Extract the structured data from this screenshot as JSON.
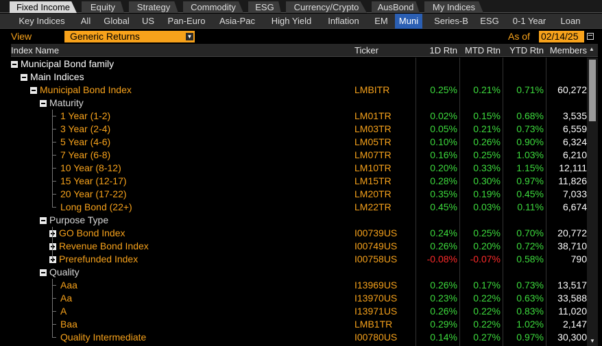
{
  "tabs_top": [
    "Fixed Income",
    "Equity",
    "Strategy",
    "Commodity",
    "ESG",
    "Currency/Crypto",
    "AusBond",
    "My Indices"
  ],
  "tabs_top_active": 0,
  "tabs_sub": [
    "Key Indices",
    "All",
    "Global",
    "US",
    "Pan-Euro",
    "Asia-Pac",
    "High Yield",
    "Inflation",
    "EM",
    "Muni",
    "Series-B",
    "ESG",
    "0-1 Year",
    "Loan"
  ],
  "tabs_sub_active": 9,
  "view": {
    "label": "View",
    "value": "Generic Returns",
    "asof_label": "As of",
    "asof_value": "02/14/25"
  },
  "columns": {
    "name": "Index Name",
    "ticker": "Ticker",
    "r1d": "1D Rtn",
    "mtd": "MTD Rtn",
    "ytd": "YTD Rtn",
    "members": "Members"
  },
  "colors": {
    "accent": "#f7a21b",
    "positive": "#3ddc3d",
    "negative": "#ff2a2a",
    "active_tab": "#2b5fb3"
  },
  "rows": [
    {
      "name": "Municipal Bond family",
      "level": 0,
      "toggle": "minus",
      "style": "white"
    },
    {
      "name": "Main Indices",
      "level": 1,
      "toggle": "minus",
      "style": "white"
    },
    {
      "name": "Municipal Bond Index",
      "level": 2,
      "toggle": "minus",
      "style": "orange",
      "ticker": "LMBITR",
      "r1d": "0.25%",
      "mtd": "0.21%",
      "ytd": "0.71%",
      "members": "60,272"
    },
    {
      "name": "Maturity",
      "level": 3,
      "toggle": "minus",
      "style": "grey"
    },
    {
      "name": "1 Year (1-2)",
      "level": 4,
      "style": "orange",
      "ticker": "LM01TR",
      "r1d": "0.02%",
      "mtd": "0.15%",
      "ytd": "0.68%",
      "members": "3,535"
    },
    {
      "name": "3 Year (2-4)",
      "level": 4,
      "style": "orange",
      "ticker": "LM03TR",
      "r1d": "0.05%",
      "mtd": "0.21%",
      "ytd": "0.73%",
      "members": "6,559"
    },
    {
      "name": "5 Year (4-6)",
      "level": 4,
      "style": "orange",
      "ticker": "LM05TR",
      "r1d": "0.10%",
      "mtd": "0.26%",
      "ytd": "0.90%",
      "members": "6,324"
    },
    {
      "name": "7 Year (6-8)",
      "level": 4,
      "style": "orange",
      "ticker": "LM07TR",
      "r1d": "0.16%",
      "mtd": "0.25%",
      "ytd": "1.03%",
      "members": "6,210"
    },
    {
      "name": "10 Year (8-12)",
      "level": 4,
      "style": "orange",
      "ticker": "LM10TR",
      "r1d": "0.20%",
      "mtd": "0.33%",
      "ytd": "1.15%",
      "members": "12,111"
    },
    {
      "name": "15 Year (12-17)",
      "level": 4,
      "style": "orange",
      "ticker": "LM15TR",
      "r1d": "0.28%",
      "mtd": "0.30%",
      "ytd": "0.97%",
      "members": "11,826"
    },
    {
      "name": "20 Year (17-22)",
      "level": 4,
      "style": "orange",
      "ticker": "LM20TR",
      "r1d": "0.35%",
      "mtd": "0.19%",
      "ytd": "0.45%",
      "members": "7,033"
    },
    {
      "name": "Long Bond (22+)",
      "level": 4,
      "style": "orange",
      "ticker": "LM22TR",
      "r1d": "0.45%",
      "mtd": "0.03%",
      "ytd": "0.11%",
      "members": "6,674"
    },
    {
      "name": "Purpose Type",
      "level": 3,
      "toggle": "minus",
      "style": "grey"
    },
    {
      "name": "GO Bond Index",
      "level": 4,
      "toggle": "plus",
      "style": "orange",
      "ticker": "I00739US",
      "r1d": "0.24%",
      "mtd": "0.25%",
      "ytd": "0.70%",
      "members": "20,772"
    },
    {
      "name": "Revenue Bond Index",
      "level": 4,
      "toggle": "plus",
      "style": "orange",
      "ticker": "I00749US",
      "r1d": "0.26%",
      "mtd": "0.20%",
      "ytd": "0.72%",
      "members": "38,710"
    },
    {
      "name": "Prerefunded Index",
      "level": 4,
      "toggle": "plus",
      "style": "orange",
      "ticker": "I00758US",
      "r1d": "-0.08%",
      "mtd": "-0.07%",
      "ytd": "0.58%",
      "members": "790"
    },
    {
      "name": "Quality",
      "level": 3,
      "toggle": "minus",
      "style": "grey"
    },
    {
      "name": "Aaa",
      "level": 4,
      "style": "orange",
      "ticker": "I13969US",
      "r1d": "0.26%",
      "mtd": "0.17%",
      "ytd": "0.73%",
      "members": "13,517"
    },
    {
      "name": "Aa",
      "level": 4,
      "style": "orange",
      "ticker": "I13970US",
      "r1d": "0.23%",
      "mtd": "0.22%",
      "ytd": "0.63%",
      "members": "33,588"
    },
    {
      "name": "A",
      "level": 4,
      "style": "orange",
      "ticker": "I13971US",
      "r1d": "0.26%",
      "mtd": "0.22%",
      "ytd": "0.83%",
      "members": "11,020"
    },
    {
      "name": "Baa",
      "level": 4,
      "style": "orange",
      "ticker": "LMB1TR",
      "r1d": "0.29%",
      "mtd": "0.22%",
      "ytd": "1.02%",
      "members": "2,147"
    },
    {
      "name": "Quality Intermediate",
      "level": 4,
      "style": "orange",
      "ticker": "I00780US",
      "r1d": "0.14%",
      "mtd": "0.27%",
      "ytd": "0.97%",
      "members": "30,300"
    }
  ]
}
